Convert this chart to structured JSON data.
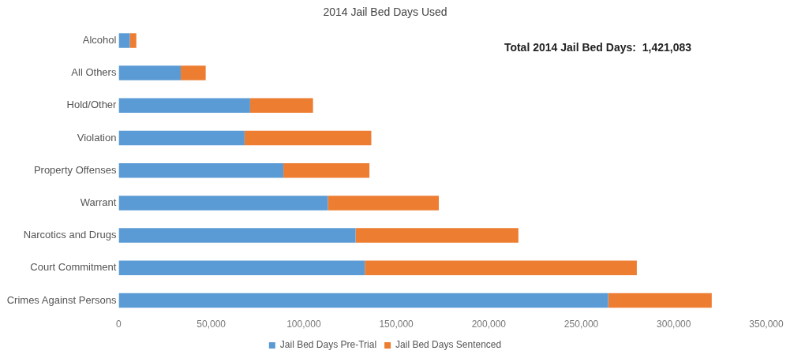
{
  "chart_data": {
    "type": "bar",
    "orientation": "horizontal",
    "stacked": true,
    "title": "2014 Jail Bed Days Used",
    "categories": [
      "Alcohol",
      "All Others",
      "Hold/Other",
      "Violation",
      "Property Offenses",
      "Warrant",
      "Narcotics and Drugs",
      "Court Commitment",
      "Crimes Against Persons"
    ],
    "series": [
      {
        "name": "Jail Bed Days Pre-Trial",
        "color": "#5b9bd5",
        "values": [
          6000,
          33500,
          71000,
          68000,
          89000,
          113000,
          128000,
          133000,
          264500
        ]
      },
      {
        "name": "Jail Bed Days Sentenced",
        "color": "#ed7d31",
        "values": [
          3500,
          13500,
          34000,
          68500,
          46500,
          60000,
          88000,
          147000,
          56000
        ]
      }
    ],
    "xlim": [
      0,
      350000
    ],
    "xticks": [
      {
        "value": 0,
        "label": "0"
      },
      {
        "value": 50000,
        "label": "50,000"
      },
      {
        "value": 100000,
        "label": "100,000"
      },
      {
        "value": 150000,
        "label": "150,000"
      },
      {
        "value": 200000,
        "label": "200,000"
      },
      {
        "value": 250000,
        "label": "250,000"
      },
      {
        "value": 300000,
        "label": "300,000"
      },
      {
        "value": 350000,
        "label": "350,000"
      }
    ],
    "grid": false,
    "legend": "bottom",
    "annotations": [
      "Total 2014 Jail Bed Days:  1,421,083"
    ]
  }
}
